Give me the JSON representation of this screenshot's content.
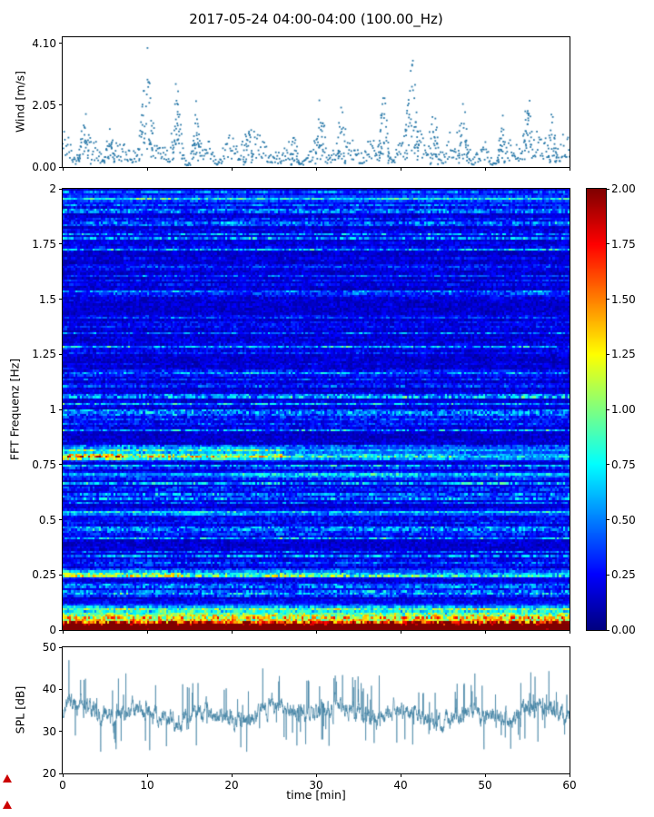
{
  "title": "2017-05-24 04:00-04:00 (100.00_Hz)",
  "chart_data": [
    {
      "type": "scatter",
      "name": "wind-speed",
      "ylabel": "Wind [m/s]",
      "ylim": [
        0,
        4.3
      ],
      "xlim": [
        0,
        60
      ],
      "yticks": [
        {
          "value": 4.1,
          "label": "4.10"
        },
        {
          "value": 2.05,
          "label": "2.05"
        },
        {
          "value": 0.0,
          "label": "0.00"
        }
      ],
      "xtick_values": [
        0,
        10,
        20,
        30,
        40,
        50,
        60
      ],
      "marker_color": "#2878a8",
      "n_points": 700,
      "seed": 42,
      "baseline": 0.6,
      "peaks": [
        {
          "x": 2.6,
          "height": 1.5,
          "width": 0.6
        },
        {
          "x": 5.5,
          "height": 1.1,
          "width": 0.5
        },
        {
          "x": 9.9,
          "height": 3.3,
          "width": 0.7
        },
        {
          "x": 13.6,
          "height": 2.6,
          "width": 0.5
        },
        {
          "x": 15.8,
          "height": 1.9,
          "width": 0.4
        },
        {
          "x": 22.0,
          "height": 1.2,
          "width": 0.5
        },
        {
          "x": 27.5,
          "height": 1.0,
          "width": 0.4
        },
        {
          "x": 30.5,
          "height": 1.5,
          "width": 0.5
        },
        {
          "x": 33.0,
          "height": 1.2,
          "width": 0.4
        },
        {
          "x": 38.0,
          "height": 2.3,
          "width": 0.5
        },
        {
          "x": 41.3,
          "height": 3.6,
          "width": 0.7
        },
        {
          "x": 44.0,
          "height": 1.6,
          "width": 0.4
        },
        {
          "x": 47.5,
          "height": 1.7,
          "width": 0.5
        },
        {
          "x": 52.0,
          "height": 1.3,
          "width": 0.4
        },
        {
          "x": 55.0,
          "height": 2.0,
          "width": 0.5
        },
        {
          "x": 58.0,
          "height": 1.5,
          "width": 0.4
        }
      ]
    },
    {
      "type": "heatmap",
      "name": "fft-spectrogram",
      "ylabel": "FFT Frequenz [Hz]",
      "ylim": [
        0,
        2
      ],
      "xlim": [
        0,
        60
      ],
      "yticks": [
        {
          "value": 2.0,
          "label": "2"
        },
        {
          "value": 1.75,
          "label": "1.75"
        },
        {
          "value": 1.5,
          "label": "1.5"
        },
        {
          "value": 1.25,
          "label": "1.25"
        },
        {
          "value": 1.0,
          "label": "1"
        },
        {
          "value": 0.75,
          "label": "0.75"
        },
        {
          "value": 0.5,
          "label": "0.5"
        },
        {
          "value": 0.25,
          "label": "0.25"
        },
        {
          "value": 0.0,
          "label": "0"
        }
      ],
      "xtick_values": [
        0,
        10,
        20,
        30,
        40,
        50,
        60
      ],
      "colormap": "jet",
      "grid": {
        "nx": 240,
        "ny": 200
      },
      "seed": 7,
      "colorbar": {
        "vmin": 0,
        "vmax": 2,
        "ticks": [
          {
            "value": 2.0,
            "label": "2.00"
          },
          {
            "value": 1.75,
            "label": "1.75"
          },
          {
            "value": 1.5,
            "label": "1.50"
          },
          {
            "value": 1.25,
            "label": "1.25"
          },
          {
            "value": 1.0,
            "label": "1.00"
          },
          {
            "value": 0.75,
            "label": "0.75"
          },
          {
            "value": 0.5,
            "label": "0.50"
          },
          {
            "value": 0.25,
            "label": "0.25"
          },
          {
            "value": 0.0,
            "label": "0.00"
          }
        ]
      },
      "bands": [
        {
          "y": 0.008,
          "sigma": 0.02,
          "patches": [
            [
              0,
              60,
              4.0
            ]
          ]
        },
        {
          "y": 0.05,
          "sigma": 0.02,
          "patches": [
            [
              0,
              60,
              1.2
            ]
          ]
        },
        {
          "y": 0.09,
          "sigma": 0.022,
          "patches": [
            [
              0,
              60,
              0.55
            ]
          ]
        },
        {
          "y": 0.25,
          "sigma": 0.013,
          "patches": [
            [
              0,
              14,
              0.95
            ],
            [
              14,
              34,
              0.7
            ],
            [
              34,
              60,
              0.5
            ]
          ]
        },
        {
          "y": 0.53,
          "sigma": 0.012,
          "patches": [
            [
              0,
              22,
              0.42
            ],
            [
              22,
              60,
              0.3
            ]
          ]
        },
        {
          "y": 0.7,
          "sigma": 0.013,
          "patches": [
            [
              0,
              20,
              0.32
            ],
            [
              20,
              42,
              0.6
            ],
            [
              42,
              60,
              0.45
            ]
          ]
        },
        {
          "y": 0.785,
          "sigma": 0.015,
          "patches": [
            [
              0,
              7,
              1.55
            ],
            [
              7,
              26,
              1.15
            ],
            [
              26,
              46,
              0.75
            ],
            [
              46,
              60,
              0.6
            ]
          ]
        },
        {
          "y": 0.815,
          "sigma": 0.011,
          "patches": [
            [
              0,
              26,
              0.8
            ],
            [
              26,
              60,
              0.45
            ]
          ]
        },
        {
          "y": 1.96,
          "sigma": 0.02,
          "patches": [
            [
              0,
              60,
              0.32
            ]
          ]
        }
      ]
    },
    {
      "type": "line",
      "name": "sound-pressure-level",
      "ylabel": "SPL [dB]",
      "xlabel": "time [min]",
      "ylim": [
        20,
        50
      ],
      "xlim": [
        0,
        60
      ],
      "yticks": [
        {
          "value": 50,
          "label": "50"
        },
        {
          "value": 40,
          "label": "40"
        },
        {
          "value": 30,
          "label": "30"
        },
        {
          "value": 20,
          "label": "20"
        }
      ],
      "xticks": [
        {
          "value": 0,
          "label": "0"
        },
        {
          "value": 10,
          "label": "10"
        },
        {
          "value": 20,
          "label": "20"
        },
        {
          "value": 30,
          "label": "30"
        },
        {
          "value": 40,
          "label": "40"
        },
        {
          "value": 50,
          "label": "50"
        },
        {
          "value": 60,
          "label": "60"
        }
      ],
      "line_color": "#3a7ca0",
      "mean": 34.3,
      "n_points": 3000,
      "seed": 99
    }
  ]
}
